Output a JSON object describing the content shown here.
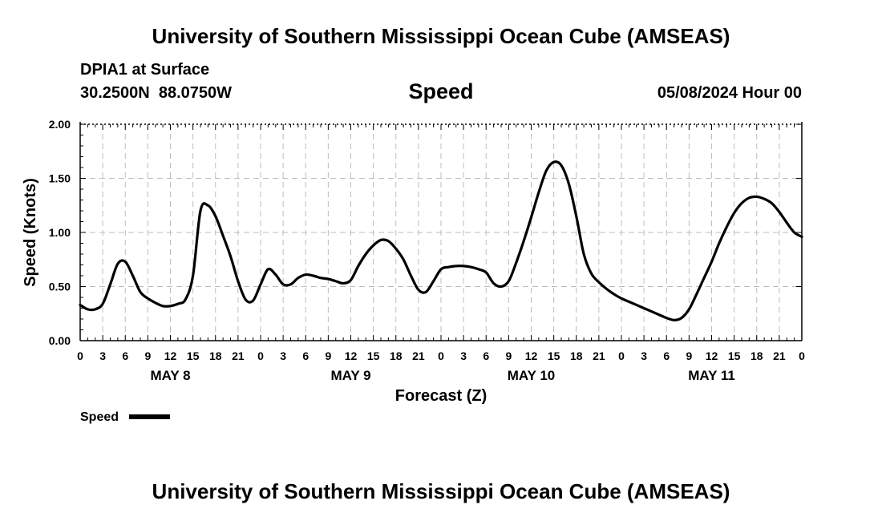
{
  "header": {
    "title": "University of Southern Mississippi Ocean Cube (AMSEAS)",
    "station": "DPIA1 at Surface",
    "coords": "30.2500N  88.0750W",
    "variable": "Speed",
    "datetime": "05/08/2024 Hour 00"
  },
  "footer": {
    "title": "University of Southern Mississippi Ocean Cube (AMSEAS)"
  },
  "chart_data": {
    "type": "line",
    "title": "Speed",
    "xlabel": "Forecast (Z)",
    "ylabel": "Speed (Knots)",
    "xlim": [
      0,
      96
    ],
    "ylim": [
      0,
      2.0
    ],
    "yticks": [
      "0.00",
      "0.50",
      "1.00",
      "1.50",
      "2.00"
    ],
    "xtick_labels": [
      "0",
      "3",
      "6",
      "9",
      "12",
      "15",
      "18",
      "21",
      "0",
      "3",
      "6",
      "9",
      "12",
      "15",
      "18",
      "21",
      "0",
      "3",
      "6",
      "9",
      "12",
      "15",
      "18",
      "21",
      "0",
      "3",
      "6",
      "9",
      "12",
      "15",
      "18",
      "21",
      "0"
    ],
    "day_labels": [
      {
        "label": "MAY 8",
        "hour": 12
      },
      {
        "label": "MAY 9",
        "hour": 36
      },
      {
        "label": "MAY 10",
        "hour": 60
      },
      {
        "label": "MAY 11",
        "hour": 84
      }
    ],
    "grid": true,
    "legend": "bottom-left",
    "series": [
      {
        "name": "Speed",
        "color": "#000000",
        "x": [
          0,
          1,
          2,
          3,
          4,
          5,
          6,
          7,
          8,
          9,
          10,
          11,
          12,
          13,
          14,
          15,
          16,
          17,
          18,
          19,
          20,
          21,
          22,
          23,
          24,
          25,
          26,
          27,
          28,
          29,
          30,
          31,
          32,
          33,
          34,
          35,
          36,
          37,
          38,
          39,
          40,
          41,
          42,
          43,
          44,
          45,
          46,
          47,
          48,
          49,
          50,
          51,
          52,
          53,
          54,
          55,
          56,
          57,
          58,
          59,
          60,
          61,
          62,
          63,
          64,
          65,
          66,
          67,
          68,
          69,
          70,
          71,
          72,
          73,
          74,
          75,
          76,
          77,
          78,
          79,
          80,
          81,
          82,
          83,
          84,
          85,
          86,
          87,
          88,
          89,
          90,
          91,
          92,
          93,
          94,
          95,
          96
        ],
        "values": [
          0.33,
          0.29,
          0.29,
          0.34,
          0.52,
          0.71,
          0.73,
          0.6,
          0.45,
          0.39,
          0.35,
          0.32,
          0.32,
          0.34,
          0.38,
          0.6,
          1.2,
          1.25,
          1.15,
          0.97,
          0.78,
          0.55,
          0.38,
          0.37,
          0.52,
          0.66,
          0.61,
          0.52,
          0.52,
          0.58,
          0.61,
          0.6,
          0.58,
          0.57,
          0.55,
          0.53,
          0.56,
          0.69,
          0.8,
          0.88,
          0.93,
          0.92,
          0.85,
          0.75,
          0.6,
          0.47,
          0.45,
          0.55,
          0.66,
          0.68,
          0.69,
          0.69,
          0.68,
          0.66,
          0.63,
          0.53,
          0.5,
          0.55,
          0.72,
          0.92,
          1.14,
          1.37,
          1.57,
          1.65,
          1.62,
          1.45,
          1.15,
          0.8,
          0.62,
          0.54,
          0.48,
          0.43,
          0.39,
          0.36,
          0.33,
          0.3,
          0.27,
          0.24,
          0.21,
          0.19,
          0.21,
          0.29,
          0.43,
          0.58,
          0.73,
          0.9,
          1.05,
          1.18,
          1.27,
          1.32,
          1.33,
          1.31,
          1.27,
          1.19,
          1.09,
          1.0,
          0.96
        ]
      }
    ]
  },
  "legend": {
    "label": "Speed"
  }
}
